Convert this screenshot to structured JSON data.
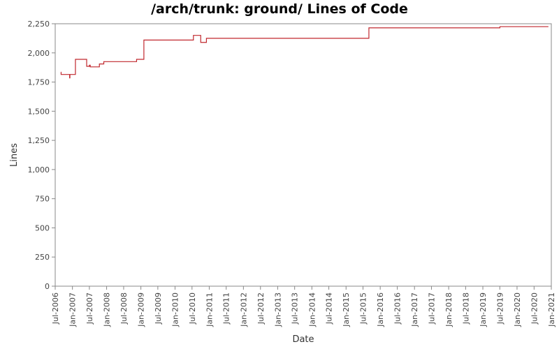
{
  "chart_data": {
    "type": "line",
    "title": "/arch/trunk: ground/ Lines of Code",
    "xlabel": "Date",
    "ylabel": "Lines",
    "ylim": [
      0,
      2250
    ],
    "yticks": [
      0,
      250,
      500,
      750,
      1000,
      1250,
      1500,
      1750,
      2000,
      2250
    ],
    "ytick_labels": [
      "0",
      "250",
      "500",
      "750",
      "1,000",
      "1,250",
      "1,500",
      "1,750",
      "2,000",
      "2,250"
    ],
    "xlim": [
      "2006-07-01",
      "2021-01-01"
    ],
    "xticks": [
      "2006-07-01",
      "2007-01-01",
      "2007-07-01",
      "2008-01-01",
      "2008-07-01",
      "2009-01-01",
      "2009-07-01",
      "2010-01-01",
      "2010-07-01",
      "2011-01-01",
      "2011-07-01",
      "2012-01-01",
      "2012-07-01",
      "2013-01-01",
      "2013-07-01",
      "2014-01-01",
      "2014-07-01",
      "2015-01-01",
      "2015-07-01",
      "2016-01-01",
      "2016-07-01",
      "2017-01-01",
      "2017-07-01",
      "2018-01-01",
      "2018-07-01",
      "2019-01-01",
      "2019-07-01",
      "2020-01-01",
      "2020-07-01",
      "2021-01-01"
    ],
    "xtick_labels": [
      "Jul-2006",
      "Jan-2007",
      "Jul-2007",
      "Jan-2008",
      "Jul-2008",
      "Jan-2009",
      "Jul-2009",
      "Jan-2010",
      "Jul-2010",
      "Jan-2011",
      "Jul-2011",
      "Jan-2012",
      "Jul-2012",
      "Jan-2013",
      "Jul-2013",
      "Jan-2014",
      "Jul-2014",
      "Jan-2015",
      "Jul-2015",
      "Jan-2016",
      "Jul-2016",
      "Jan-2017",
      "Jul-2017",
      "Jan-2018",
      "Jul-2018",
      "Jan-2019",
      "Jul-2019",
      "Jan-2020",
      "Jul-2020",
      "Jan-2021"
    ],
    "grid": false,
    "line_style": "step",
    "color": "#c0272d",
    "series": [
      {
        "points": [
          [
            "2006-09-01",
            1835
          ],
          [
            "2006-09-02",
            1815
          ],
          [
            "2006-12-01",
            1815
          ],
          [
            "2006-12-02",
            1785
          ],
          [
            "2006-12-05",
            1815
          ],
          [
            "2007-02-01",
            1815
          ],
          [
            "2007-02-02",
            1945
          ],
          [
            "2007-06-01",
            1945
          ],
          [
            "2007-06-02",
            1885
          ],
          [
            "2007-07-01",
            1885
          ],
          [
            "2007-07-02",
            1895
          ],
          [
            "2007-07-10",
            1880
          ],
          [
            "2007-10-15",
            1880
          ],
          [
            "2007-10-16",
            1905
          ],
          [
            "2007-12-01",
            1905
          ],
          [
            "2007-12-02",
            1925
          ],
          [
            "2008-11-15",
            1925
          ],
          [
            "2008-11-16",
            1945
          ],
          [
            "2009-02-01",
            1945
          ],
          [
            "2009-02-02",
            2110
          ],
          [
            "2010-07-15",
            2110
          ],
          [
            "2010-07-16",
            2150
          ],
          [
            "2010-10-01",
            2150
          ],
          [
            "2010-10-02",
            2090
          ],
          [
            "2010-12-01",
            2090
          ],
          [
            "2010-12-02",
            2125
          ],
          [
            "2015-09-01",
            2125
          ],
          [
            "2015-09-02",
            2215
          ],
          [
            "2019-07-01",
            2215
          ],
          [
            "2019-07-02",
            2225
          ],
          [
            "2020-12-01",
            2225
          ]
        ]
      }
    ]
  }
}
